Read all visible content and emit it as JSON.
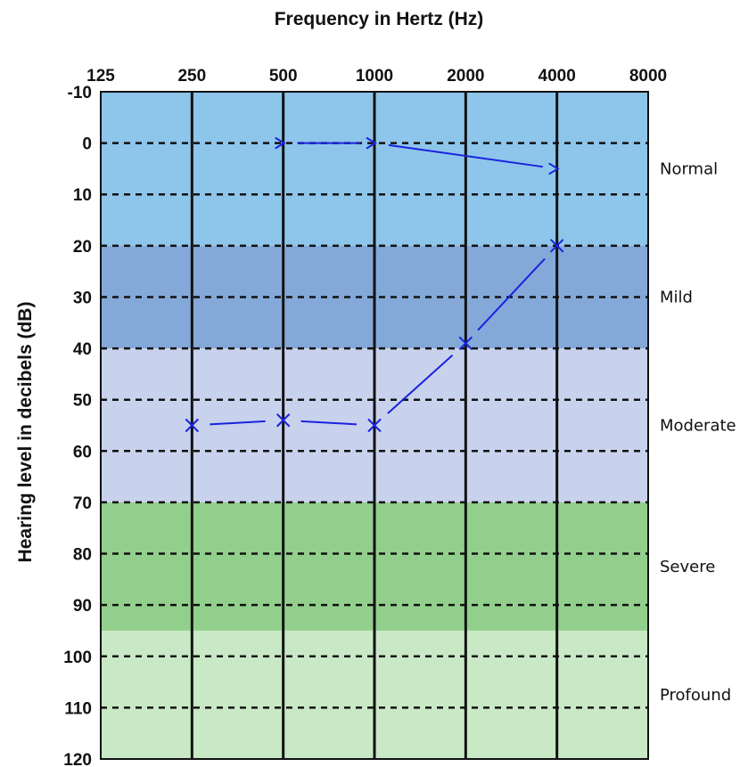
{
  "chart_data": {
    "type": "line",
    "title": "Frequency in Hertz (Hz)",
    "xlabel": "Frequency in Hertz (Hz)",
    "ylabel": "Hearing level in decibels (dB)",
    "x_ticks": [
      "125",
      "250",
      "500",
      "1000",
      "2000",
      "4000",
      "8000"
    ],
    "y_ticks": [
      "-10",
      "0",
      "10",
      "20",
      "30",
      "40",
      "50",
      "60",
      "70",
      "80",
      "90",
      "100",
      "110",
      "120"
    ],
    "ylim": [
      -10,
      120
    ],
    "y_inverted": true,
    "x_scale": "log2",
    "grid": "dashed horizontal, solid vertical",
    "bands": [
      {
        "label": "Normal",
        "from": -10,
        "to": 20,
        "color": "#8ec5ea"
      },
      {
        "label": "Mild",
        "from": 20,
        "to": 40,
        "color": "#84a9d9"
      },
      {
        "label": "Moderate",
        "from": 40,
        "to": 70,
        "color": "#c8d2ed"
      },
      {
        "label": "Severe",
        "from": 70,
        "to": 95,
        "color": "#93cf8c"
      },
      {
        "label": "Profound",
        "from": 95,
        "to": 120,
        "color": "#c9e8c5"
      }
    ],
    "series": [
      {
        "marker": "tick",
        "color": "#1a22e0",
        "x": [
          500,
          1000,
          4000
        ],
        "y": [
          0,
          0,
          5
        ]
      },
      {
        "marker": "x",
        "color": "#1a22e0",
        "x": [
          250,
          500,
          1000,
          2000,
          4000
        ],
        "y": [
          55,
          54,
          55,
          39,
          20
        ]
      }
    ]
  }
}
